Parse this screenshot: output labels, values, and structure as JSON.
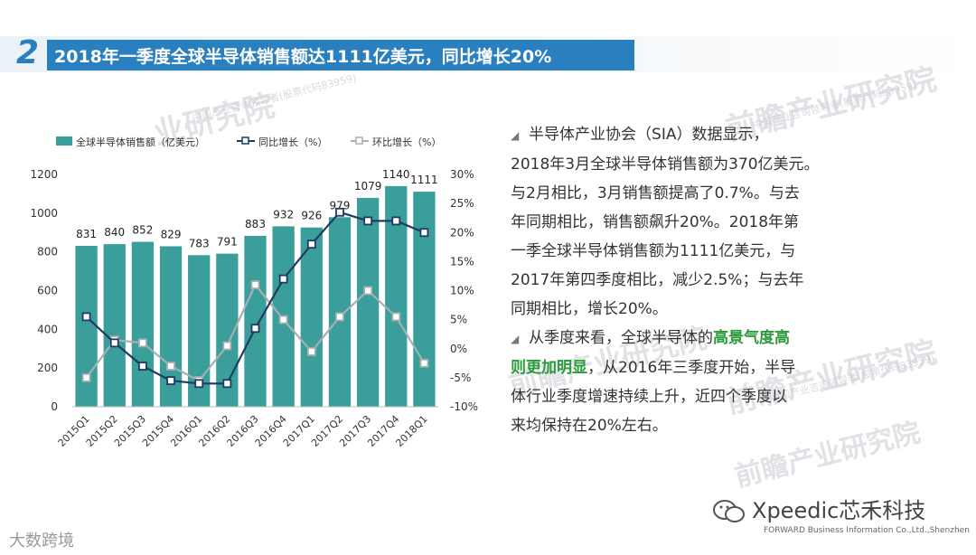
{
  "header": {
    "number": "2",
    "title": "2018年一季度全球半导体销售额达1111亿美元，同比增长20%"
  },
  "watermarks": {
    "main": "业研究院",
    "main2": "前瞻产业研究院",
    "sub": "中国产业咨询领导者(股票代码83959)"
  },
  "chart_data": {
    "type": "bar",
    "categories": [
      "2015Q1",
      "2015Q2",
      "2015Q3",
      "2015Q4",
      "2016Q1",
      "2016Q2",
      "2016Q3",
      "2016Q4",
      "2017Q1",
      "2017Q2",
      "2017Q3",
      "2017Q4",
      "2018Q1"
    ],
    "series": [
      {
        "name": "全球半导体销售额（亿美元）",
        "type": "bar",
        "axis": "left",
        "values": [
          831,
          840,
          852,
          829,
          783,
          791,
          883,
          932,
          926,
          979,
          1079,
          1140,
          1111
        ],
        "color": "#3a9e9a"
      },
      {
        "name": "同比增长（%）",
        "type": "line",
        "axis": "right",
        "values": [
          5.5,
          1.0,
          -3.0,
          -5.5,
          -6.0,
          -6.0,
          3.5,
          12.0,
          18.0,
          23.5,
          22.0,
          22.0,
          20.0
        ],
        "color": "#1f3b63"
      },
      {
        "name": "环比增长（%）",
        "type": "line",
        "axis": "right",
        "values": [
          -5.0,
          1.5,
          1.0,
          -3.0,
          -5.5,
          0.5,
          11.0,
          5.0,
          -0.5,
          5.5,
          10.0,
          5.5,
          -2.5
        ],
        "color": "#a9aeb3"
      }
    ],
    "y_left": {
      "min": 0,
      "max": 1200,
      "ticks": [
        "0",
        "200",
        "400",
        "600",
        "800",
        "1000",
        "1200"
      ]
    },
    "y_right": {
      "min": -10,
      "max": 30,
      "ticks": [
        "-10%",
        "-5%",
        "0%",
        "5%",
        "10%",
        "15%",
        "20%",
        "25%",
        "30%"
      ]
    },
    "legend_position": "top"
  },
  "body": {
    "p1_lines": [
      "半导体产业协会（SIA）数据显示，",
      "2018年3月全球半导体销售额为370亿美元。",
      "与2月相比，3月销售额提高了0.7%。与去",
      "年同期相比，销售额飙升20%。2018年第",
      "一季全球半导体销售额为1111亿美元，与",
      "2017年第四季度相比，减少2.5%；与去年",
      "同期相比，增长20%。"
    ],
    "p2_a": "从季度来看，全球半导体的",
    "p2_hl1": "高景气度高",
    "p2_hl2": "则更加明显",
    "p2_b": "，从2016年三季度开始，半导",
    "p2_lines": [
      "体行业季度增速持续上升，近四个季度以",
      "来均保持在20%左右。"
    ],
    "bullet": "◢"
  },
  "footer": {
    "left": "大数跨境",
    "brand": "Xpeedic芯禾科技",
    "company": "FORWARD Business Information Co.,Ltd.,Shenzhen"
  }
}
